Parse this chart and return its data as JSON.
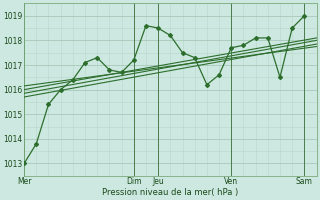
{
  "background_color": "#cce8e0",
  "grid_color_major": "#a8c8b8",
  "grid_color_minor": "#b8d8c8",
  "line_color": "#2d6e2d",
  "vline_color": "#4a7a4a",
  "ylim": [
    1012.5,
    1019.5
  ],
  "yticks": [
    1013,
    1014,
    1015,
    1016,
    1017,
    1018,
    1019
  ],
  "xlabel": "Pression niveau de la mer( hPa )",
  "day_labels": [
    "Mer",
    "Dim",
    "Jeu",
    "Ven",
    "Sam"
  ],
  "day_positions": [
    0,
    54,
    66,
    102,
    138
  ],
  "xlim": [
    0,
    144
  ],
  "main_series_x": [
    0,
    6,
    12,
    18,
    24,
    30,
    36,
    42,
    48,
    54,
    60,
    66,
    72,
    78,
    84,
    90,
    96,
    102,
    108,
    114,
    120,
    126,
    132,
    138
  ],
  "main_series_y": [
    1013.0,
    1013.8,
    1015.4,
    1016.0,
    1016.4,
    1017.1,
    1017.3,
    1016.8,
    1016.7,
    1017.2,
    1018.6,
    1018.5,
    1018.2,
    1017.5,
    1017.3,
    1016.2,
    1016.6,
    1017.7,
    1017.8,
    1018.1,
    1018.1,
    1016.5,
    1018.5,
    1019.0
  ],
  "trend_lines": [
    {
      "x": [
        0,
        144
      ],
      "y": [
        1015.7,
        1017.85
      ]
    },
    {
      "x": [
        0,
        144
      ],
      "y": [
        1015.85,
        1018.0
      ]
    },
    {
      "x": [
        0,
        144
      ],
      "y": [
        1016.0,
        1018.1
      ]
    },
    {
      "x": [
        0,
        144
      ],
      "y": [
        1016.15,
        1017.75
      ]
    }
  ],
  "vline_positions": [
    0,
    54,
    66,
    102,
    138
  ],
  "tick_fontsize": 5.5,
  "label_fontsize": 6.0
}
